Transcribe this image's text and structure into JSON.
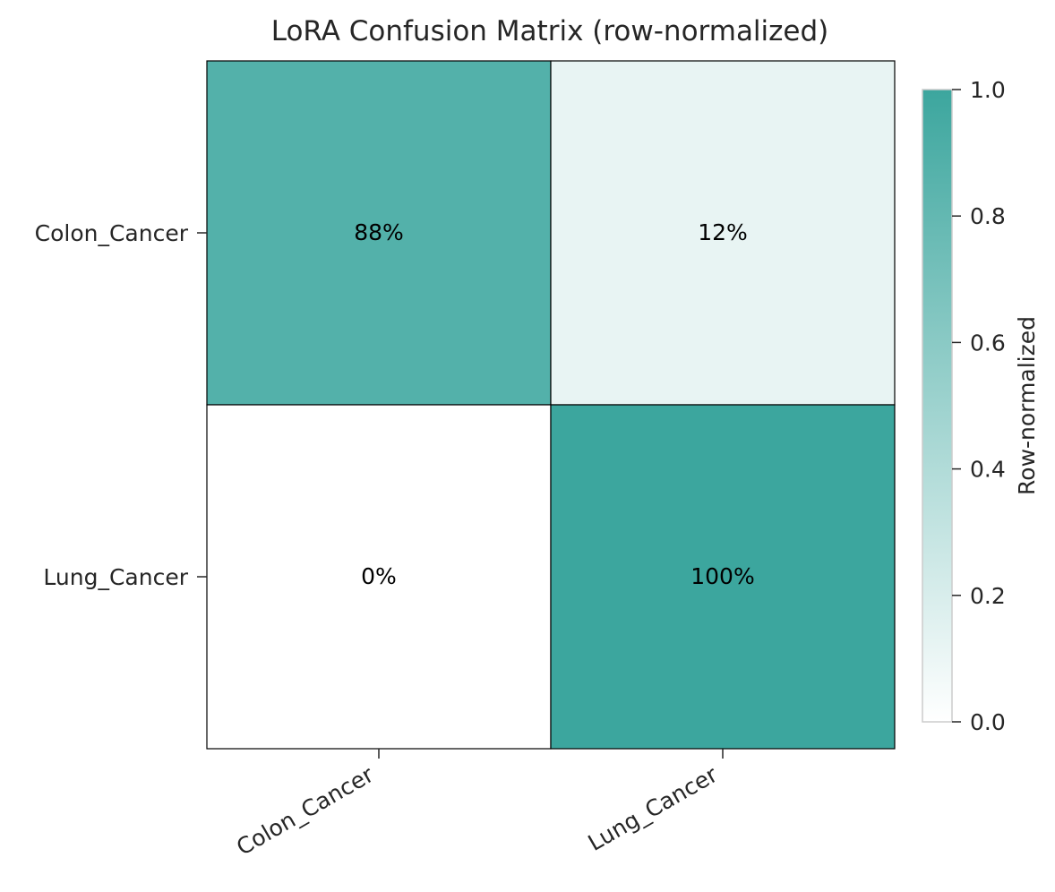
{
  "chart_data": {
    "type": "heatmap",
    "title": "LoRA Confusion Matrix (row-normalized)",
    "row_labels": [
      "Colon_Cancer",
      "Lung_Cancer"
    ],
    "col_labels": [
      "Colon_Cancer",
      "Lung_Cancer"
    ],
    "values": [
      [
        0.88,
        0.12
      ],
      [
        0.0,
        1.0
      ]
    ],
    "cell_labels": [
      [
        "88%",
        "12%"
      ],
      [
        "0%",
        "100%"
      ]
    ],
    "colorbar": {
      "label": "Row-normalized",
      "range": [
        0.0,
        1.0
      ],
      "ticks": [
        "0.0",
        "0.2",
        "0.4",
        "0.6",
        "0.8",
        "1.0"
      ],
      "color_low": "#ffffff",
      "color_high": "#3ca69e"
    },
    "grid": false
  }
}
